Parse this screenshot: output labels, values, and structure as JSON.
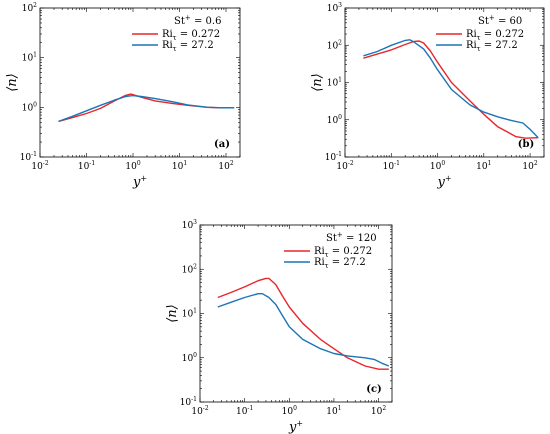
{
  "chart_data": [
    {
      "type": "line",
      "panel_label": "(a)",
      "xlabel": "y+",
      "ylabel": "⟨n⟩",
      "xscale": "log",
      "yscale": "log",
      "xlim": [
        0.01,
        200
      ],
      "ylim": [
        0.1,
        100
      ],
      "x_ticks": [
        "10-2",
        "10-1",
        "100",
        "101",
        "102"
      ],
      "y_ticks": [
        "10-1",
        "100",
        "101",
        "102"
      ],
      "legend_title": "St+ = 0.6",
      "legend_position": "top-right",
      "series": [
        {
          "name": "Riτ = 0.272",
          "color": "#e8262b",
          "x": [
            0.025,
            0.05,
            0.1,
            0.2,
            0.4,
            0.7,
            0.9,
            1.5,
            3,
            7,
            15,
            40,
            80,
            150
          ],
          "y": [
            0.52,
            0.62,
            0.75,
            0.95,
            1.35,
            1.75,
            1.85,
            1.6,
            1.35,
            1.2,
            1.1,
            1.0,
            0.98,
            0.98
          ]
        },
        {
          "name": "Riτ = 27.2",
          "color": "#1a75b8",
          "x": [
            0.025,
            0.05,
            0.1,
            0.2,
            0.4,
            0.7,
            1.0,
            1.5,
            3,
            7,
            15,
            40,
            80,
            150
          ],
          "y": [
            0.52,
            0.66,
            0.85,
            1.1,
            1.4,
            1.65,
            1.72,
            1.65,
            1.5,
            1.3,
            1.12,
            1.0,
            0.98,
            0.98
          ]
        }
      ]
    },
    {
      "type": "line",
      "panel_label": "(b)",
      "xlabel": "y+",
      "ylabel": "⟨n⟩",
      "xscale": "log",
      "yscale": "log",
      "xlim": [
        0.01,
        200
      ],
      "ylim": [
        0.1,
        1000
      ],
      "x_ticks": [
        "10-2",
        "10-1",
        "100",
        "101",
        "102"
      ],
      "y_ticks": [
        "10-1",
        "100",
        "101",
        "102",
        "103"
      ],
      "legend_title": "St+ = 60",
      "legend_position": "top-right",
      "series": [
        {
          "name": "Riτ = 0.272",
          "color": "#e8262b",
          "x": [
            0.025,
            0.05,
            0.1,
            0.2,
            0.3,
            0.4,
            0.5,
            0.7,
            1,
            2,
            5,
            10,
            20,
            50,
            80,
            150
          ],
          "y": [
            45,
            58,
            75,
            105,
            125,
            130,
            115,
            70,
            35,
            10,
            3.2,
            1.4,
            0.65,
            0.35,
            0.32,
            0.33
          ]
        },
        {
          "name": "Riτ = 27.2",
          "color": "#1a75b8",
          "x": [
            0.025,
            0.05,
            0.1,
            0.2,
            0.25,
            0.3,
            0.5,
            0.7,
            1,
            2,
            5,
            10,
            20,
            40,
            70,
            100,
            150
          ],
          "y": [
            52,
            68,
            100,
            135,
            140,
            125,
            80,
            45,
            22,
            6.5,
            2.5,
            1.6,
            1.2,
            0.95,
            0.82,
            0.55,
            0.33
          ]
        }
      ]
    },
    {
      "type": "line",
      "panel_label": "(c)",
      "xlabel": "y+",
      "ylabel": "⟨n⟩",
      "xscale": "log",
      "yscale": "log",
      "xlim": [
        0.01,
        200
      ],
      "ylim": [
        0.1,
        1000
      ],
      "x_ticks": [
        "10-2",
        "10-1",
        "100",
        "101",
        "102"
      ],
      "y_ticks": [
        "10-1",
        "100",
        "101",
        "102",
        "103"
      ],
      "legend_title": "St+ = 120",
      "legend_position": "top-right",
      "series": [
        {
          "name": "Riτ = 0.272",
          "color": "#e8262b",
          "x": [
            0.025,
            0.05,
            0.1,
            0.2,
            0.3,
            0.35,
            0.5,
            0.7,
            1,
            2,
            5,
            10,
            20,
            50,
            100,
            170
          ],
          "y": [
            23,
            30,
            40,
            55,
            62,
            62,
            45,
            25,
            14,
            6,
            2.6,
            1.6,
            1.0,
            0.65,
            0.55,
            0.55
          ]
        },
        {
          "name": "Riτ = 27.2",
          "color": "#1a75b8",
          "x": [
            0.025,
            0.05,
            0.1,
            0.2,
            0.25,
            0.35,
            0.5,
            0.7,
            1,
            2,
            5,
            10,
            20,
            50,
            80,
            120,
            170
          ],
          "y": [
            14,
            18,
            23,
            28,
            28,
            23,
            16,
            9,
            5,
            2.6,
            1.6,
            1.25,
            1.1,
            1.0,
            0.92,
            0.75,
            0.65
          ]
        }
      ]
    }
  ]
}
